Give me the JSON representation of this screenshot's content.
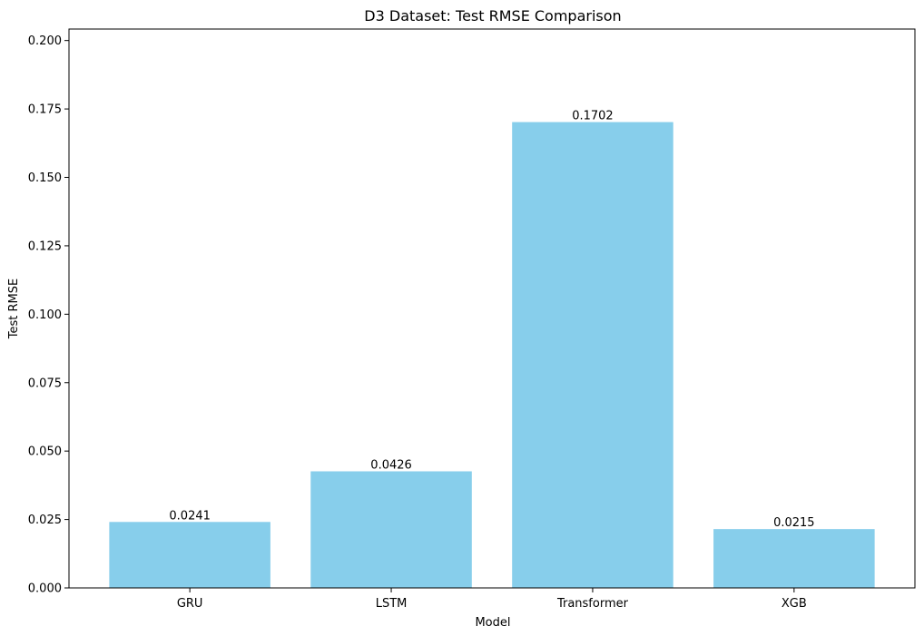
{
  "chart_data": {
    "type": "bar",
    "title": "D3 Dataset: Test RMSE Comparison",
    "xlabel": "Model",
    "ylabel": "Test RMSE",
    "categories": [
      "GRU",
      "LSTM",
      "Transformer",
      "XGB"
    ],
    "values": [
      0.0241,
      0.0426,
      0.1702,
      0.0215
    ],
    "value_labels": [
      "0.0241",
      "0.0426",
      "0.1702",
      "0.0215"
    ],
    "ylim": [
      0,
      0.2042
    ],
    "yticks": [
      0.0,
      0.025,
      0.05,
      0.075,
      0.1,
      0.125,
      0.15,
      0.175,
      0.2
    ],
    "ytick_labels": [
      "0.000",
      "0.025",
      "0.050",
      "0.075",
      "0.100",
      "0.125",
      "0.150",
      "0.175",
      "0.200"
    ],
    "bar_color": "#87ceeb",
    "grid": false,
    "legend": "none"
  }
}
